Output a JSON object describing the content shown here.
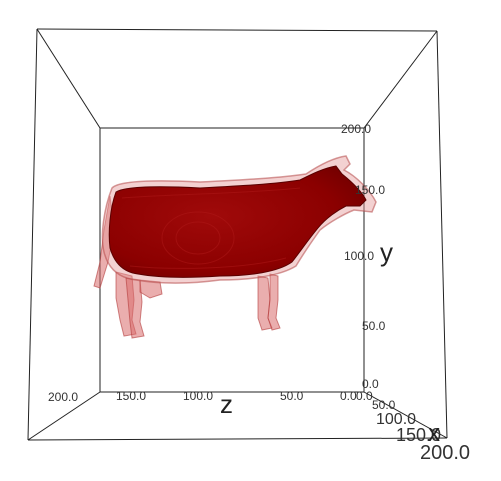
{
  "chart_data": {
    "type": "3d-surface",
    "subject": "cow",
    "colors": {
      "surface": "#8b0000",
      "surface_edge": "#d46a6a",
      "frame": "#222222"
    },
    "axes": {
      "x": {
        "label": "x",
        "ticks": [
          "50.0",
          "100.0",
          "150.0",
          "200.0"
        ]
      },
      "y": {
        "label": "y",
        "ticks": [
          "0.0",
          "50.0",
          "100.0",
          "150.0",
          "200.0"
        ]
      },
      "z": {
        "label": "z",
        "ticks": [
          "200.0",
          "150.0",
          "100.0",
          "50.0",
          "0.0"
        ]
      }
    },
    "x_corner_tick": "0.0",
    "grid": false
  }
}
